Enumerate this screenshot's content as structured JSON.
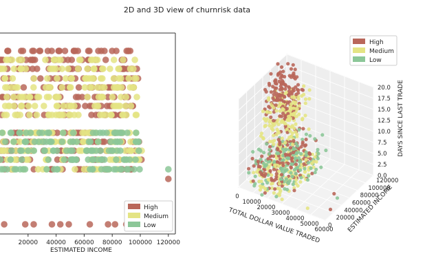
{
  "suptitle": "2D and 3D view of churnrisk data",
  "colors": {
    "High": "#b9675a",
    "Medium": "#e4e484",
    "Low": "#8cc798"
  },
  "chart_data": [
    {
      "type": "scatter",
      "panel": "2d",
      "xlabel": "ESTIMATED INCOME",
      "ylabel": "",
      "xlim": [
        0,
        125000
      ],
      "xticks": [
        "20000",
        "40000",
        "60000",
        "80000",
        "100000",
        "120000"
      ],
      "xtick_values": [
        20000,
        40000,
        60000,
        80000,
        100000,
        120000
      ],
      "grid": false,
      "legend_position": "bottom-right",
      "y_levels": [
        20,
        19,
        18,
        17,
        16,
        15,
        14,
        13,
        12,
        11,
        10,
        9,
        8,
        7,
        0
      ],
      "series": [
        {
          "name": "High",
          "x_ranges": [
            [
              0,
              99000
            ],
            [
              0,
              99000
            ],
            [
              0,
              99000
            ],
            [
              0,
              99000
            ],
            [
              0,
              99000
            ],
            [
              0,
              99000
            ],
            [
              0,
              99000
            ],
            [
              0,
              99000
            ],
            [
              0,
              101000
            ],
            [
              0,
              101000
            ],
            [
              0,
              101000
            ],
            [
              0,
              101000
            ],
            [
              0,
              101000
            ]
          ],
          "y_for_ranges": [
            20,
            19,
            18,
            17,
            16,
            15,
            14,
            13,
            12,
            11,
            10,
            9,
            8
          ],
          "points": [
            {
              "x": 120000,
              "y": 7
            },
            {
              "x": 3000,
              "y": 0
            },
            {
              "x": 18000,
              "y": 0
            },
            {
              "x": 24000,
              "y": 0
            },
            {
              "x": 37000,
              "y": 0
            },
            {
              "x": 43000,
              "y": 0
            },
            {
              "x": 49000,
              "y": 0
            },
            {
              "x": 64000,
              "y": 0
            },
            {
              "x": 77000,
              "y": 0
            },
            {
              "x": 82000,
              "y": 0
            },
            {
              "x": 90000,
              "y": 0
            },
            {
              "x": 120000,
              "y": 0
            }
          ]
        },
        {
          "name": "Medium",
          "x_ranges": [
            [
              0,
              99000
            ],
            [
              0,
              99000
            ],
            [
              0,
              99000
            ],
            [
              0,
              99000
            ],
            [
              0,
              99000
            ],
            [
              0,
              99000
            ],
            [
              0,
              99000
            ],
            [
              0,
              99000
            ],
            [
              0,
              101000
            ],
            [
              0,
              101000
            ],
            [
              0,
              101000
            ],
            [
              0,
              101000
            ]
          ],
          "y_for_ranges": [
            19,
            18,
            17,
            16,
            15,
            14,
            13,
            12,
            11,
            10,
            9,
            8
          ],
          "points": []
        },
        {
          "name": "Low",
          "x_ranges": [
            [
              0,
              101000
            ],
            [
              0,
              101000
            ],
            [
              0,
              101000
            ],
            [
              0,
              101000
            ],
            [
              0,
              101000
            ]
          ],
          "y_for_ranges": [
            12,
            11,
            10,
            9,
            8
          ],
          "points": [
            {
              "x": 120000,
              "y": 8
            }
          ]
        }
      ]
    },
    {
      "type": "scatter",
      "panel": "3d",
      "xlabel": "TOTAL DOLLAR VALUE TRADED",
      "ylabel": "ESTIMATED INCOME",
      "zlabel": "DAYS SINCE LAST TRADE",
      "xlim": [
        0,
        60000
      ],
      "ylim": [
        0,
        120000
      ],
      "zlim": [
        0,
        20
      ],
      "xticks": [
        "0",
        "10000",
        "20000",
        "30000",
        "40000",
        "50000",
        "60000"
      ],
      "yticks": [
        "0",
        "20000",
        "40000",
        "60000",
        "80000",
        "100000",
        "120000"
      ],
      "zticks": [
        "0.0",
        "2.5",
        "5.0",
        "7.5",
        "10.0",
        "12.5",
        "15.0",
        "17.5",
        "20.0"
      ],
      "grid": true,
      "legend_position": "top-right",
      "series": [
        {
          "name": "High",
          "clusters": [
            {
              "x": [
                0,
                15000
              ],
              "y": [
                60000,
                110000
              ],
              "z": [
                10,
                20
              ]
            },
            {
              "x": [
                5000,
                30000
              ],
              "y": [
                0,
                100000
              ],
              "z": [
                0,
                8
              ]
            }
          ]
        },
        {
          "name": "Medium",
          "clusters": [
            {
              "x": [
                0,
                20000
              ],
              "y": [
                50000,
                110000
              ],
              "z": [
                6,
                16
              ]
            },
            {
              "x": [
                5000,
                30000
              ],
              "y": [
                0,
                100000
              ],
              "z": [
                0,
                4
              ]
            }
          ]
        },
        {
          "name": "Low",
          "clusters": [
            {
              "x": [
                5000,
                35000
              ],
              "y": [
                0,
                100000
              ],
              "z": [
                0,
                8
              ]
            }
          ]
        }
      ]
    }
  ]
}
